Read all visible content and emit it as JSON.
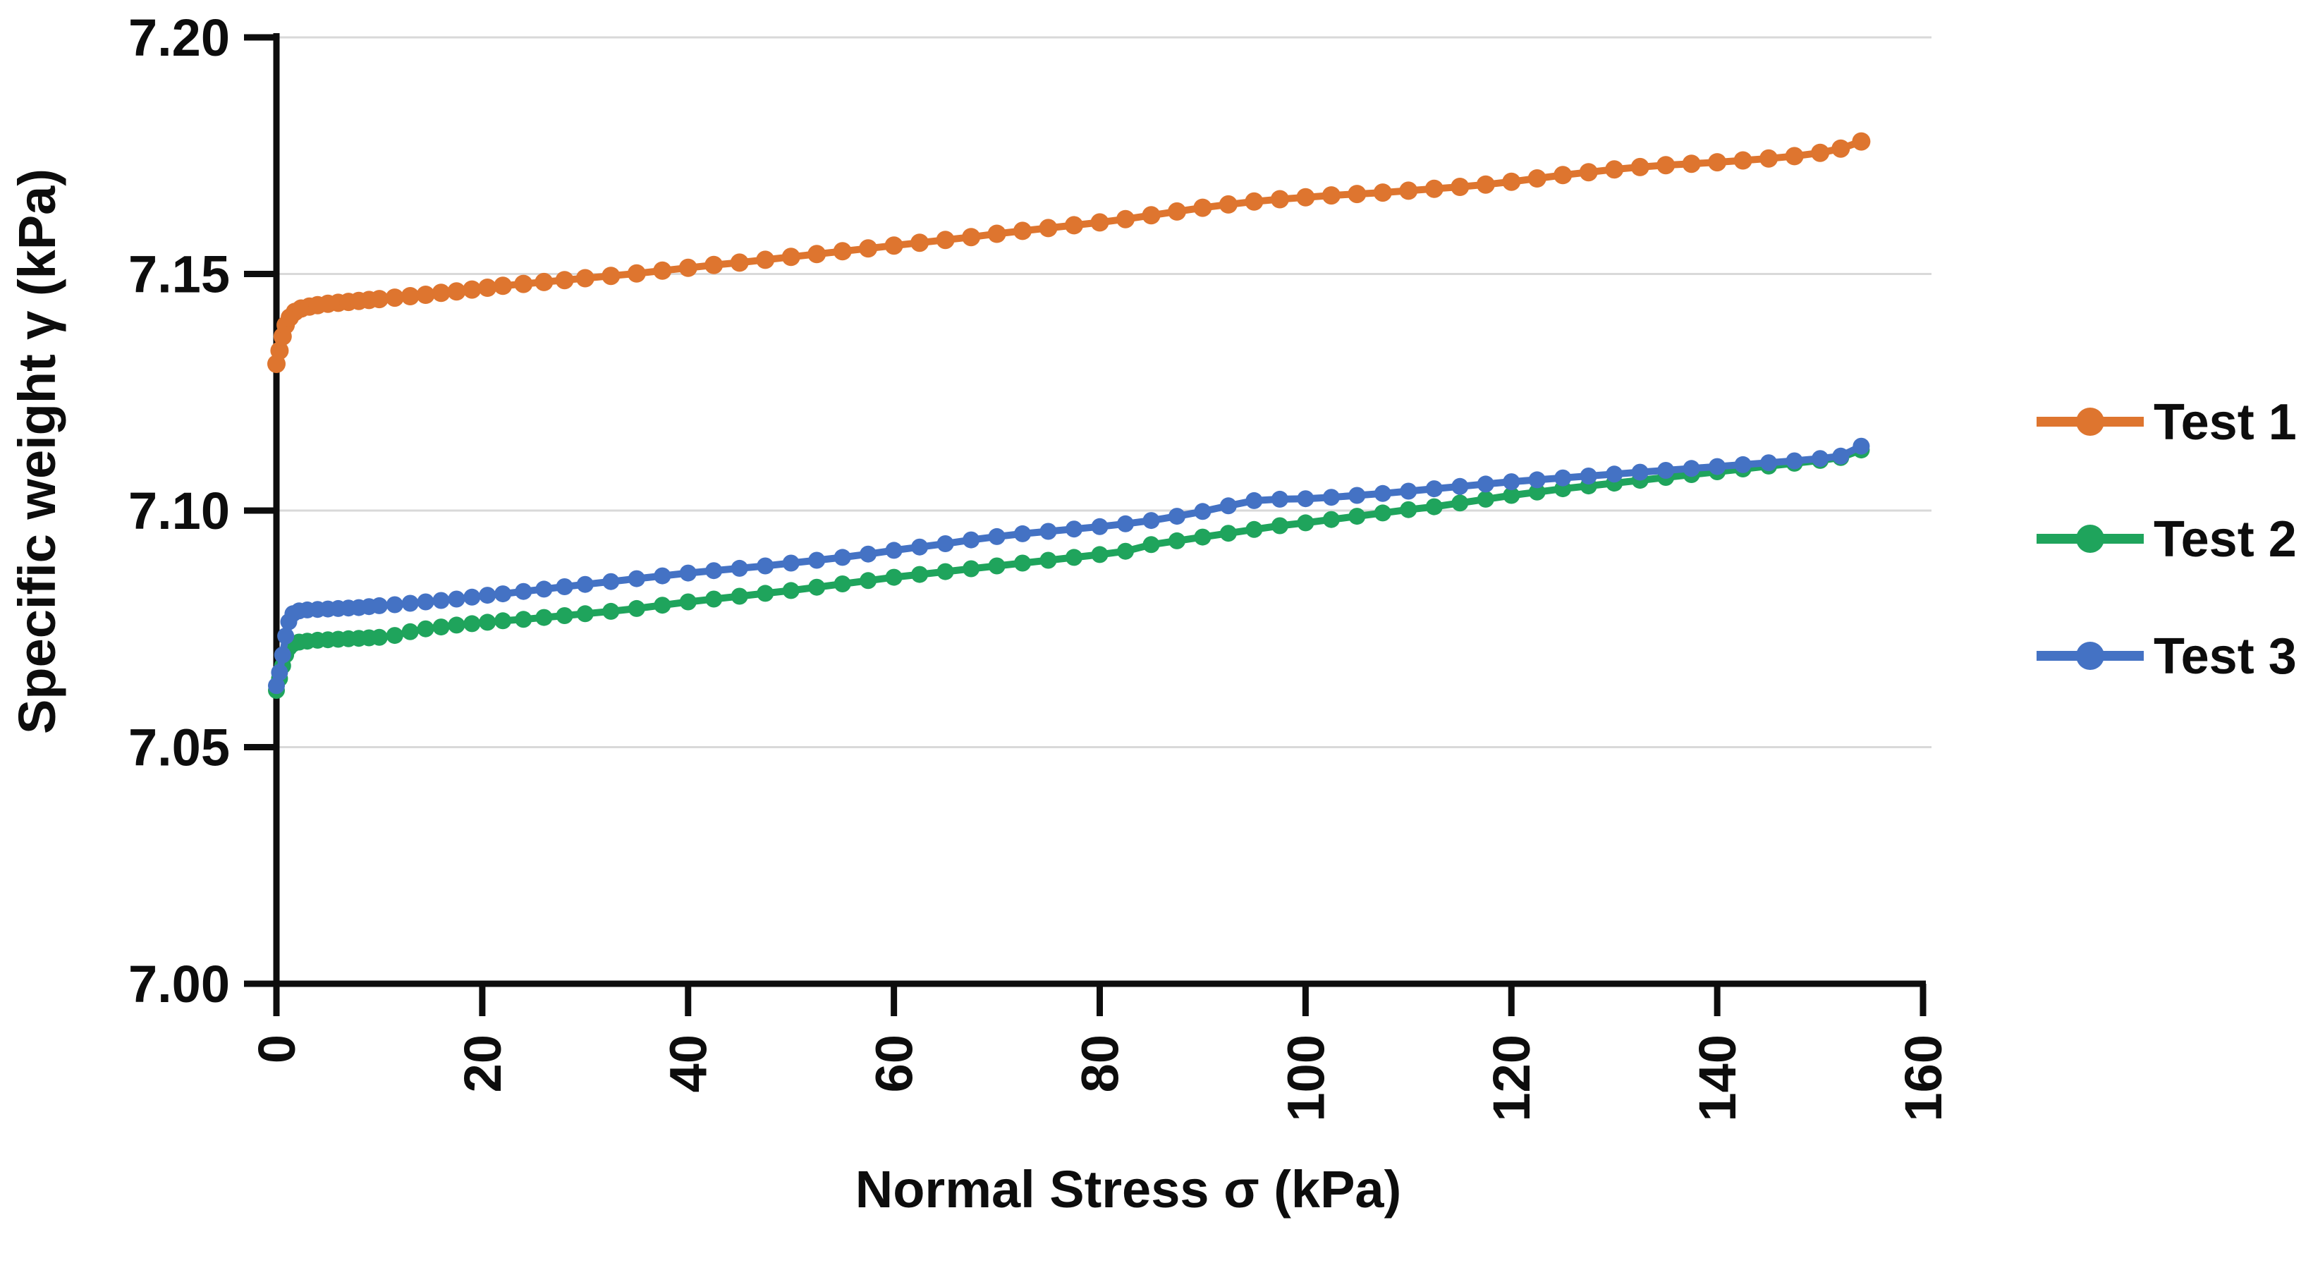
{
  "chart_data": {
    "type": "line",
    "title": "",
    "xlabel": "Normal Stress σ (kPa)",
    "ylabel": "Specific weight γ (kPa)",
    "xlim": [
      0,
      160
    ],
    "ylim": [
      7.0,
      7.2
    ],
    "grid": "horizontal-only",
    "gridline_color": "#D9D9D9",
    "axis_color": "#0d0d0d",
    "legend_position": "right",
    "x_tick_label_rotation": -90,
    "x_ticks": [
      {
        "value": 0,
        "label": "0"
      },
      {
        "value": 20,
        "label": "20"
      },
      {
        "value": 40,
        "label": "40"
      },
      {
        "value": 60,
        "label": "60"
      },
      {
        "value": 80,
        "label": "80"
      },
      {
        "value": 100,
        "label": "100"
      },
      {
        "value": 120,
        "label": "120"
      },
      {
        "value": 140,
        "label": "140"
      },
      {
        "value": 160,
        "label": "160"
      }
    ],
    "y_ticks": [
      {
        "value": 7.0,
        "label": "7.00"
      },
      {
        "value": 7.05,
        "label": "7.05"
      },
      {
        "value": 7.1,
        "label": "7.10"
      },
      {
        "value": 7.15,
        "label": "7.15"
      },
      {
        "value": 7.2,
        "label": "7.20"
      }
    ],
    "series": [
      {
        "name": "Test 1",
        "color": "#DE752F",
        "marker": "circle",
        "points": [
          [
            0,
            7.131
          ],
          [
            0.3,
            7.1338
          ],
          [
            0.6,
            7.1368
          ],
          [
            0.9,
            7.1392
          ],
          [
            1.3,
            7.1408
          ],
          [
            1.8,
            7.142
          ],
          [
            2.4,
            7.1427
          ],
          [
            3.2,
            7.1431
          ],
          [
            4,
            7.1434
          ],
          [
            5,
            7.1437
          ],
          [
            6,
            7.1439
          ],
          [
            7,
            7.1441
          ],
          [
            8,
            7.1443
          ],
          [
            9,
            7.1445
          ],
          [
            10,
            7.1447
          ],
          [
            11.5,
            7.145
          ],
          [
            13,
            7.1453
          ],
          [
            14.5,
            7.1456
          ],
          [
            16,
            7.146
          ],
          [
            17.5,
            7.1463
          ],
          [
            19,
            7.1467
          ],
          [
            20.5,
            7.1471
          ],
          [
            22,
            7.1475
          ],
          [
            24,
            7.1479
          ],
          [
            26,
            7.1483
          ],
          [
            28,
            7.1487
          ],
          [
            30,
            7.1491
          ],
          [
            32.5,
            7.1496
          ],
          [
            35,
            7.1501
          ],
          [
            37.5,
            7.1507
          ],
          [
            40,
            7.1513
          ],
          [
            42.5,
            7.1519
          ],
          [
            45,
            7.1524
          ],
          [
            47.5,
            7.153
          ],
          [
            50,
            7.1536
          ],
          [
            52.5,
            7.1542
          ],
          [
            55,
            7.1548
          ],
          [
            57.5,
            7.1554
          ],
          [
            60,
            7.156
          ],
          [
            62.5,
            7.1566
          ],
          [
            65,
            7.1572
          ],
          [
            67.5,
            7.1578
          ],
          [
            70,
            7.1585
          ],
          [
            72.5,
            7.1591
          ],
          [
            75,
            7.1597
          ],
          [
            77.5,
            7.1603
          ],
          [
            80,
            7.1609
          ],
          [
            82.5,
            7.1616
          ],
          [
            85,
            7.1624
          ],
          [
            87.5,
            7.1632
          ],
          [
            90,
            7.164
          ],
          [
            92.5,
            7.1647
          ],
          [
            95,
            7.1653
          ],
          [
            97.5,
            7.1658
          ],
          [
            100,
            7.1662
          ],
          [
            102.5,
            7.1666
          ],
          [
            105,
            7.1669
          ],
          [
            107.5,
            7.1672
          ],
          [
            110,
            7.1676
          ],
          [
            112.5,
            7.168
          ],
          [
            115,
            7.1684
          ],
          [
            117.5,
            7.1689
          ],
          [
            120,
            7.1695
          ],
          [
            122.5,
            7.1702
          ],
          [
            125,
            7.1709
          ],
          [
            127.5,
            7.1715
          ],
          [
            130,
            7.1721
          ],
          [
            132.5,
            7.1726
          ],
          [
            135,
            7.173
          ],
          [
            137.5,
            7.1733
          ],
          [
            140,
            7.1736
          ],
          [
            142.5,
            7.174
          ],
          [
            145,
            7.1744
          ],
          [
            147.5,
            7.1749
          ],
          [
            150,
            7.1756
          ],
          [
            152,
            7.1765
          ],
          [
            154,
            7.178
          ]
        ]
      },
      {
        "name": "Test 2",
        "color": "#1FA45C",
        "marker": "circle",
        "points": [
          [
            0,
            7.062
          ],
          [
            0.3,
            7.0645
          ],
          [
            0.6,
            7.0672
          ],
          [
            0.9,
            7.0695
          ],
          [
            1.2,
            7.071
          ],
          [
            1.6,
            7.0718
          ],
          [
            2.2,
            7.0722
          ],
          [
            3,
            7.0724
          ],
          [
            4,
            7.0726
          ],
          [
            5,
            7.0727
          ],
          [
            6,
            7.0728
          ],
          [
            7,
            7.0729
          ],
          [
            8,
            7.073
          ],
          [
            9,
            7.0731
          ],
          [
            10,
            7.0732
          ],
          [
            11.5,
            7.0736
          ],
          [
            13,
            7.0744
          ],
          [
            14.5,
            7.075
          ],
          [
            16,
            7.0754
          ],
          [
            17.5,
            7.0758
          ],
          [
            19,
            7.0761
          ],
          [
            20.5,
            7.0764
          ],
          [
            22,
            7.0767
          ],
          [
            24,
            7.077
          ],
          [
            26,
            7.0774
          ],
          [
            28,
            7.0778
          ],
          [
            30,
            7.0782
          ],
          [
            32.5,
            7.0787
          ],
          [
            35,
            7.0793
          ],
          [
            37.5,
            7.08
          ],
          [
            40,
            7.0807
          ],
          [
            42.5,
            7.0813
          ],
          [
            45,
            7.0819
          ],
          [
            47.5,
            7.0825
          ],
          [
            50,
            7.0831
          ],
          [
            52.5,
            7.0838
          ],
          [
            55,
            7.0845
          ],
          [
            57.5,
            7.0852
          ],
          [
            60,
            7.0859
          ],
          [
            62.5,
            7.0865
          ],
          [
            65,
            7.0871
          ],
          [
            67.5,
            7.0877
          ],
          [
            70,
            7.0883
          ],
          [
            72.5,
            7.0889
          ],
          [
            75,
            7.0895
          ],
          [
            77.5,
            7.0901
          ],
          [
            80,
            7.0907
          ],
          [
            82.5,
            7.0914
          ],
          [
            85,
            7.0928
          ],
          [
            87.5,
            7.0936
          ],
          [
            90,
            7.0944
          ],
          [
            92.5,
            7.0952
          ],
          [
            95,
            7.096
          ],
          [
            97.5,
            7.0968
          ],
          [
            100,
            7.0974
          ],
          [
            102.5,
            7.0981
          ],
          [
            105,
            7.0988
          ],
          [
            107.5,
            7.0995
          ],
          [
            110,
            7.1002
          ],
          [
            112.5,
            7.1008
          ],
          [
            115,
            7.1016
          ],
          [
            117.5,
            7.1024
          ],
          [
            120,
            7.1032
          ],
          [
            122.5,
            7.1039
          ],
          [
            125,
            7.1046
          ],
          [
            127.5,
            7.1052
          ],
          [
            130,
            7.1058
          ],
          [
            132.5,
            7.1064
          ],
          [
            135,
            7.107
          ],
          [
            137.5,
            7.1076
          ],
          [
            140,
            7.1082
          ],
          [
            142.5,
            7.1088
          ],
          [
            145,
            7.1094
          ],
          [
            147.5,
            7.11
          ],
          [
            150,
            7.1106
          ],
          [
            152,
            7.1112
          ],
          [
            154,
            7.1128
          ]
        ]
      },
      {
        "name": "Test 3",
        "color": "#4472C4",
        "marker": "circle",
        "points": [
          [
            0,
            7.063
          ],
          [
            0.3,
            7.0658
          ],
          [
            0.6,
            7.0695
          ],
          [
            0.9,
            7.0735
          ],
          [
            1.2,
            7.0765
          ],
          [
            1.6,
            7.0782
          ],
          [
            2.2,
            7.0788
          ],
          [
            3,
            7.079
          ],
          [
            4,
            7.0791
          ],
          [
            5,
            7.0792
          ],
          [
            6,
            7.0793
          ],
          [
            7,
            7.0794
          ],
          [
            8,
            7.0795
          ],
          [
            9,
            7.0797
          ],
          [
            10,
            7.0799
          ],
          [
            11.5,
            7.0801
          ],
          [
            13,
            7.0804
          ],
          [
            14.5,
            7.0807
          ],
          [
            16,
            7.081
          ],
          [
            17.5,
            7.0813
          ],
          [
            19,
            7.0817
          ],
          [
            20.5,
            7.0821
          ],
          [
            22,
            7.0824
          ],
          [
            24,
            7.0829
          ],
          [
            26,
            7.0834
          ],
          [
            28,
            7.0839
          ],
          [
            30,
            7.0844
          ],
          [
            32.5,
            7.085
          ],
          [
            35,
            7.0856
          ],
          [
            37.5,
            7.0862
          ],
          [
            40,
            7.0868
          ],
          [
            42.5,
            7.0873
          ],
          [
            45,
            7.0878
          ],
          [
            47.5,
            7.0883
          ],
          [
            50,
            7.0889
          ],
          [
            52.5,
            7.0895
          ],
          [
            55,
            7.0901
          ],
          [
            57.5,
            7.0908
          ],
          [
            60,
            7.0916
          ],
          [
            62.5,
            7.0923
          ],
          [
            65,
            7.093
          ],
          [
            67.5,
            7.0938
          ],
          [
            70,
            7.0945
          ],
          [
            72.5,
            7.0951
          ],
          [
            75,
            7.0956
          ],
          [
            77.5,
            7.0961
          ],
          [
            80,
            7.0966
          ],
          [
            82.5,
            7.0972
          ],
          [
            85,
            7.0979
          ],
          [
            87.5,
            7.0988
          ],
          [
            90,
            7.0998
          ],
          [
            92.5,
            7.101
          ],
          [
            95,
            7.1021
          ],
          [
            97.5,
            7.1024
          ],
          [
            100,
            7.1025
          ],
          [
            102.5,
            7.1028
          ],
          [
            105,
            7.1032
          ],
          [
            107.5,
            7.1036
          ],
          [
            110,
            7.1041
          ],
          [
            112.5,
            7.1046
          ],
          [
            115,
            7.1051
          ],
          [
            117.5,
            7.1056
          ],
          [
            120,
            7.1061
          ],
          [
            122.5,
            7.1065
          ],
          [
            125,
            7.1069
          ],
          [
            127.5,
            7.1073
          ],
          [
            130,
            7.1077
          ],
          [
            132.5,
            7.1081
          ],
          [
            135,
            7.1085
          ],
          [
            137.5,
            7.1089
          ],
          [
            140,
            7.1093
          ],
          [
            142.5,
            7.1097
          ],
          [
            145,
            7.1101
          ],
          [
            147.5,
            7.1105
          ],
          [
            150,
            7.111
          ],
          [
            152,
            7.1115
          ],
          [
            154,
            7.1136
          ]
        ]
      }
    ]
  }
}
